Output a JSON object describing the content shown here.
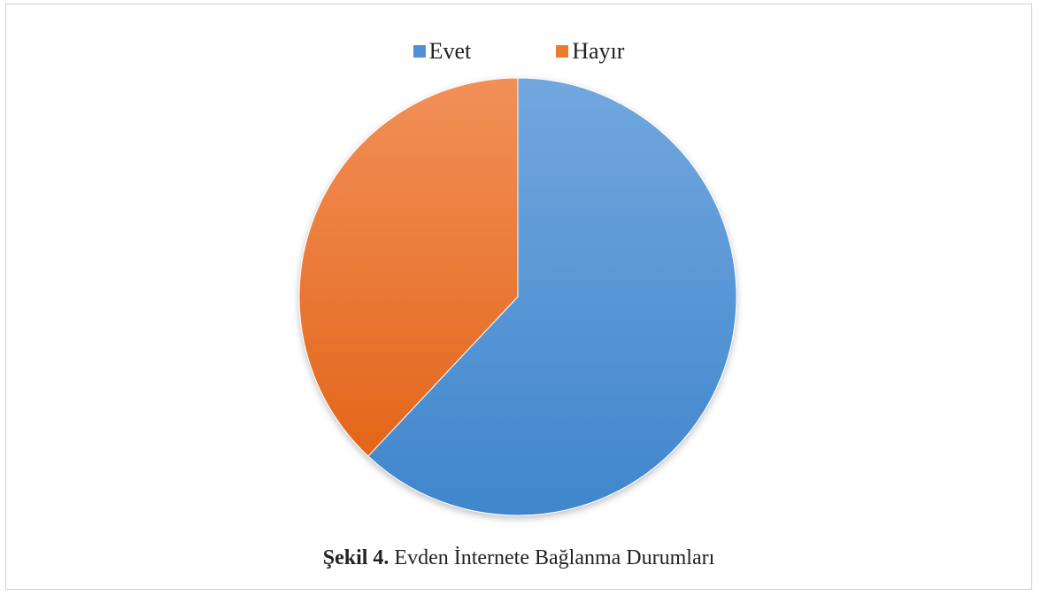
{
  "chart_data": {
    "type": "pie",
    "categories": [
      "Evet",
      "Hayır"
    ],
    "values": [
      62,
      38
    ],
    "colors": [
      "#4e91d6",
      "#ee7a30"
    ],
    "legend_position": "top",
    "caption_label": "Şekil 4.",
    "caption_text": "Evden İnternete Bağlanma Durumları"
  }
}
